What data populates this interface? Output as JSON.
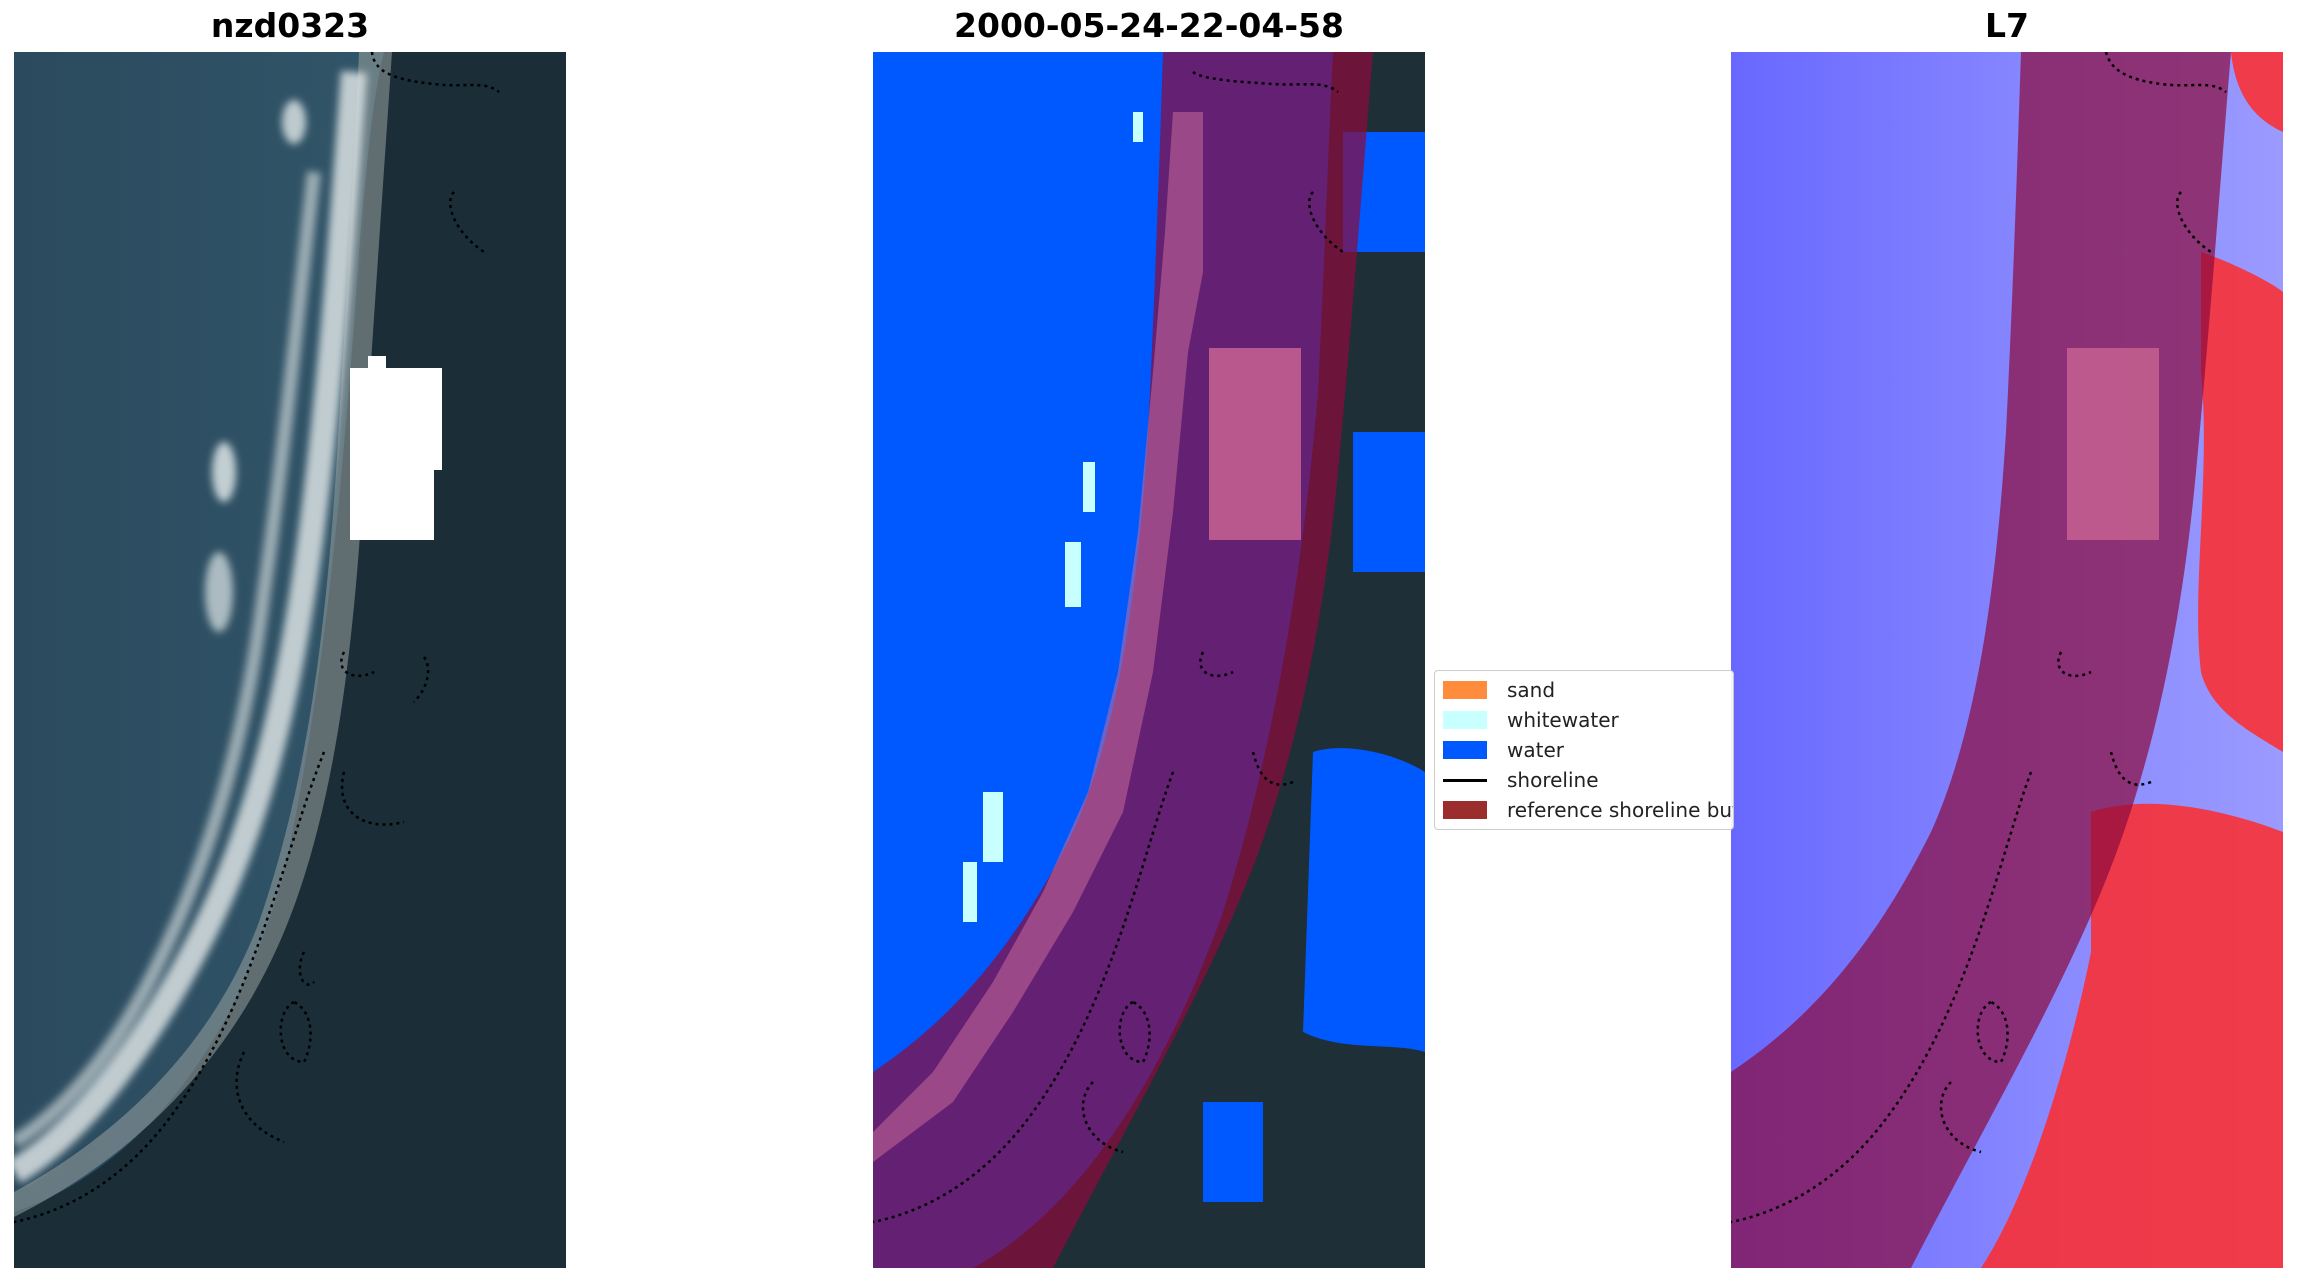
{
  "panels": [
    {
      "title": "nzd0323"
    },
    {
      "title": "2000-05-24-22-04-58"
    },
    {
      "title": "L7"
    }
  ],
  "legend": {
    "items": [
      {
        "label": "sand",
        "color": "#ff8c3c"
      },
      {
        "label": "whitewater",
        "color": "#c8ffff"
      },
      {
        "label": "water",
        "color": "#0059ff"
      },
      {
        "label": "shoreline",
        "color": "#000000"
      },
      {
        "label": "reference shoreline buffer",
        "color": "#9b2d2d"
      }
    ]
  },
  "colors": {
    "ocean_rgb": "#2d4e63",
    "land_rgb": "#1a2c36",
    "surf": "#c9d4d6",
    "water_class": "#0059ff",
    "buffer": "#8b0a3c",
    "index_blue": "#6060ff",
    "index_red": "#ff2a2a"
  }
}
